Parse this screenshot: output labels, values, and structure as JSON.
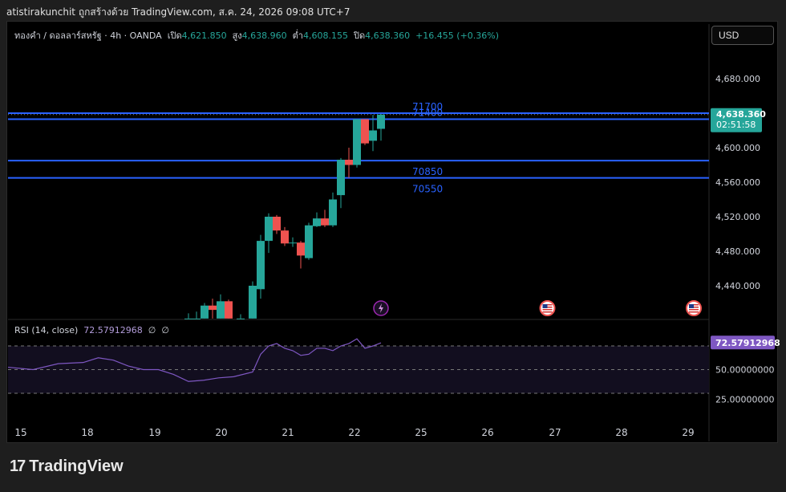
{
  "header": {
    "attribution": "atistirakunchit ถูกสร้างด้วย TradingView.com, ส.ค. 24, 2026 09:08 UTC+7"
  },
  "legend": {
    "symbol": "ทองคำ / ดอลลาร์สหรัฐ · 4h · OANDA",
    "open_label": "เปิด",
    "open": "4,621.850",
    "high_label": "สูง",
    "high": "4,638.960",
    "low_label": "ต่ำ",
    "low": "4,608.155",
    "close_label": "ปิด",
    "close": "4,638.360",
    "change": "+16.455 (+0.36%)"
  },
  "currency_button": "USD",
  "price_badge": {
    "price": "4,638.360",
    "countdown": "02:51:58"
  },
  "rsi": {
    "label": "RSI (14, close)",
    "value": "72.57912968",
    "extra1": "∅",
    "extra2": "∅",
    "badge": "72.57912968"
  },
  "footer": {
    "brand": "TradingView"
  },
  "colors": {
    "up": "#26a69a",
    "down": "#ef5350",
    "level_line": "#2962ff",
    "rsi_line": "#7e57c2",
    "background": "#000000"
  },
  "chart_data": [
    {
      "type": "candlestick",
      "title": "ทองคำ / ดอลลาร์สหรัฐ · 4h · OANDA",
      "x_tick_labels": [
        "15",
        "18",
        "19",
        "20",
        "21",
        "22",
        "25",
        "26",
        "27",
        "28",
        "29"
      ],
      "y_tick_labels": [
        "4,680.000",
        "4,640.000",
        "4,600.000",
        "4,560.000",
        "4,520.000",
        "4,480.000",
        "4,440.000"
      ],
      "ylim": [
        4402,
        4690
      ],
      "horizontal_levels": [
        {
          "label": "71700",
          "price": 4640
        },
        {
          "label": "71400",
          "price": 4633
        },
        {
          "label": "70850",
          "price": 4585
        },
        {
          "label": "70550",
          "price": 4565
        }
      ],
      "candles": [
        {
          "x": 18.0,
          "o": 4402,
          "h": 4408,
          "l": 4402,
          "c": 4402
        },
        {
          "x": 18.8,
          "o": 4402,
          "h": 4410,
          "l": 4402,
          "c": 4402
        },
        {
          "x": 19.6,
          "o": 4402,
          "h": 4420,
          "l": 4402,
          "c": 4417
        },
        {
          "x": 20.4,
          "o": 4417,
          "h": 4425,
          "l": 4402,
          "c": 4412
        },
        {
          "x": 21.2,
          "o": 4402,
          "h": 4430,
          "l": 4402,
          "c": 4422
        },
        {
          "x": 22.0,
          "o": 4422,
          "h": 4424,
          "l": 4402,
          "c": 4402
        },
        {
          "x": 23.2,
          "o": 4402,
          "h": 4407,
          "l": 4402,
          "c": 4402
        },
        {
          "x": 24.4,
          "o": 4402,
          "h": 4445,
          "l": 4402,
          "c": 4440
        },
        {
          "x": 25.2,
          "o": 4436,
          "h": 4499,
          "l": 4425,
          "c": 4492
        },
        {
          "x": 26.0,
          "o": 4492,
          "h": 4524,
          "l": 4478,
          "c": 4520
        },
        {
          "x": 26.8,
          "o": 4520,
          "h": 4522,
          "l": 4500,
          "c": 4504
        },
        {
          "x": 27.6,
          "o": 4504,
          "h": 4508,
          "l": 4486,
          "c": 4489
        },
        {
          "x": 28.4,
          "o": 4490,
          "h": 4496,
          "l": 4485,
          "c": 4490
        },
        {
          "x": 29.2,
          "o": 4490,
          "h": 4492,
          "l": 4460,
          "c": 4475
        },
        {
          "x": 30.0,
          "o": 4472,
          "h": 4513,
          "l": 4470,
          "c": 4510
        },
        {
          "x": 30.8,
          "o": 4509,
          "h": 4525,
          "l": 4508,
          "c": 4518
        },
        {
          "x": 31.6,
          "o": 4518,
          "h": 4528,
          "l": 4508,
          "c": 4510
        },
        {
          "x": 32.4,
          "o": 4510,
          "h": 4548,
          "l": 4508,
          "c": 4540
        },
        {
          "x": 33.2,
          "o": 4545,
          "h": 4588,
          "l": 4530,
          "c": 4586
        },
        {
          "x": 34.0,
          "o": 4586,
          "h": 4600,
          "l": 4565,
          "c": 4580
        },
        {
          "x": 34.8,
          "o": 4580,
          "h": 4633,
          "l": 4577,
          "c": 4633
        },
        {
          "x": 35.6,
          "o": 4633,
          "h": 4633,
          "l": 4603,
          "c": 4605
        },
        {
          "x": 36.4,
          "o": 4608,
          "h": 4638,
          "l": 4596,
          "c": 4620
        },
        {
          "x": 37.2,
          "o": 4621.85,
          "h": 4638.96,
          "l": 4608.155,
          "c": 4638.36
        }
      ],
      "markers": [
        {
          "type": "lightning-icon",
          "x": 37.2
        },
        {
          "type": "us-flag-icon",
          "x": 53.8
        },
        {
          "type": "us-flag-icon",
          "x": 68.4
        }
      ]
    },
    {
      "type": "line",
      "title": "RSI (14, close)",
      "y_tick_labels": [
        "50.00000000",
        "25.00000000"
      ],
      "ylim": [
        18,
        85
      ],
      "guide_levels": [
        70,
        50,
        30
      ],
      "series": [
        {
          "name": "RSI (14, close)",
          "points": [
            [
              0,
              52
            ],
            [
              2.5,
              50
            ],
            [
              5,
              55
            ],
            [
              7.5,
              56
            ],
            [
              9,
              60
            ],
            [
              10.5,
              58
            ],
            [
              12,
              53
            ],
            [
              13.5,
              50
            ],
            [
              15,
              50
            ],
            [
              16.5,
              46
            ],
            [
              18,
              40
            ],
            [
              19.5,
              41
            ],
            [
              21,
              43
            ],
            [
              22.5,
              44
            ],
            [
              24.4,
              48
            ],
            [
              25.2,
              63
            ],
            [
              26.0,
              70
            ],
            [
              26.8,
              72
            ],
            [
              27.6,
              68
            ],
            [
              28.4,
              66
            ],
            [
              29.2,
              62
            ],
            [
              30.0,
              63
            ],
            [
              30.8,
              68
            ],
            [
              31.6,
              68
            ],
            [
              32.4,
              66
            ],
            [
              33.2,
              70
            ],
            [
              34.0,
              72
            ],
            [
              34.8,
              76
            ],
            [
              35.6,
              68
            ],
            [
              36.4,
              70
            ],
            [
              37.2,
              72.58
            ]
          ]
        }
      ]
    }
  ]
}
